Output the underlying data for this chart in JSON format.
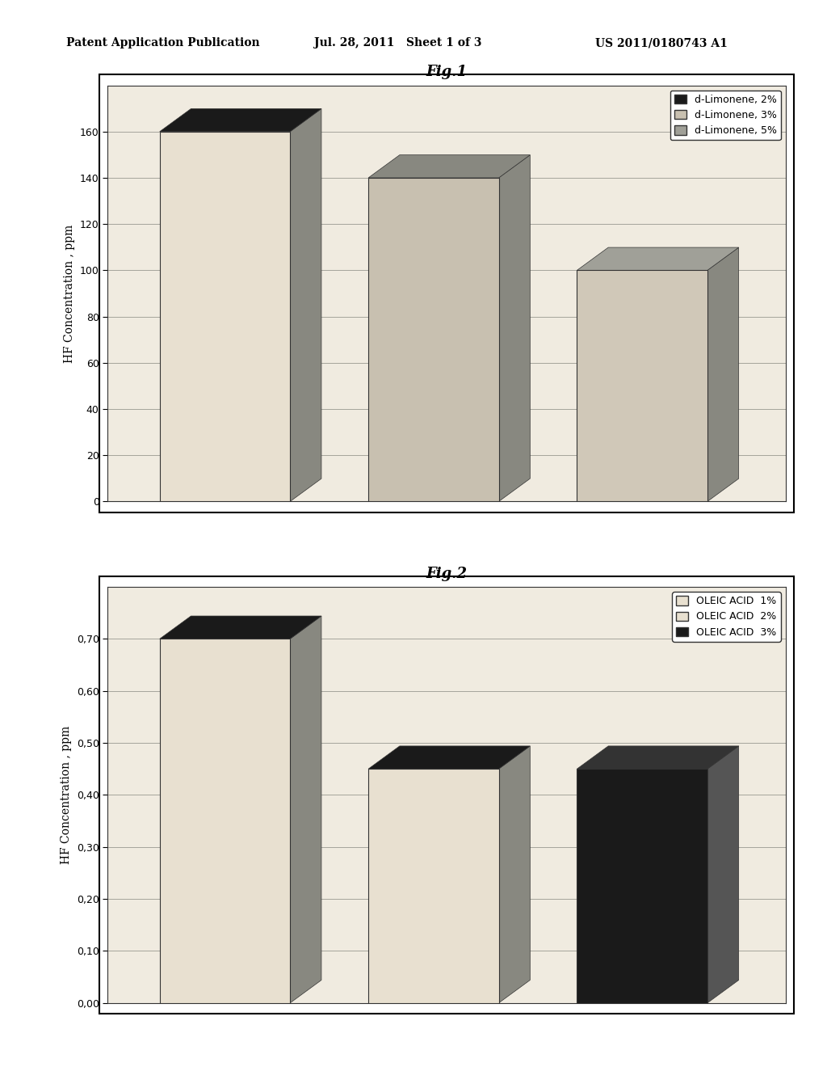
{
  "fig1": {
    "title": "Fig.1",
    "ylabel": "HF Concentration , ppm",
    "values": [
      160,
      140,
      100
    ],
    "bar_colors": [
      "#e8e0d0",
      "#c8c0b0",
      "#d0c8b8"
    ],
    "top_colors": [
      "#1a1a1a",
      "#888880",
      "#a0a098"
    ],
    "legend_labels": [
      "d-Limonene, 2%",
      "d-Limonene, 3%",
      "d-Limonene, 5%"
    ],
    "legend_colors": [
      "#1a1a1a",
      "#c8c0b0",
      "#a0a098"
    ],
    "yticks": [
      0,
      20,
      40,
      60,
      80,
      100,
      120,
      140,
      160
    ],
    "ylim": [
      0,
      180
    ],
    "depth": 15,
    "bar_width": 0.5,
    "x_positions": [
      0.3,
      1.1,
      1.9
    ]
  },
  "fig2": {
    "title": "Fig.2",
    "ylabel": "HF Concentration , ppm",
    "values": [
      0.7,
      0.45,
      0.45
    ],
    "bar_colors": [
      "#e8e0d0",
      "#e8e0d0",
      "#1a1a1a"
    ],
    "top_colors": [
      "#1a1a1a",
      "#1a1a1a",
      "#1a1a1a"
    ],
    "legend_labels": [
      "OLEIC ACID  1%",
      "OLEIC ACID  2%",
      "OLEIC ACID  3%"
    ],
    "legend_colors": [
      "#e8e0d0",
      "#c8c0b0",
      "#1a1a1a"
    ],
    "yticks": [
      0.0,
      0.1,
      0.2,
      0.3,
      0.4,
      0.5,
      0.6,
      0.7
    ],
    "ylim": [
      0,
      0.8
    ],
    "depth": 0.04,
    "bar_width": 0.5,
    "x_positions": [
      0.3,
      1.1,
      1.9
    ]
  },
  "header_left": "Patent Application Publication",
  "header_mid": "Jul. 28, 2011   Sheet 1 of 3",
  "header_right": "US 2011/0180743 A1",
  "bg_color": "#ffffff",
  "chart_bg": "#f0ebe0"
}
